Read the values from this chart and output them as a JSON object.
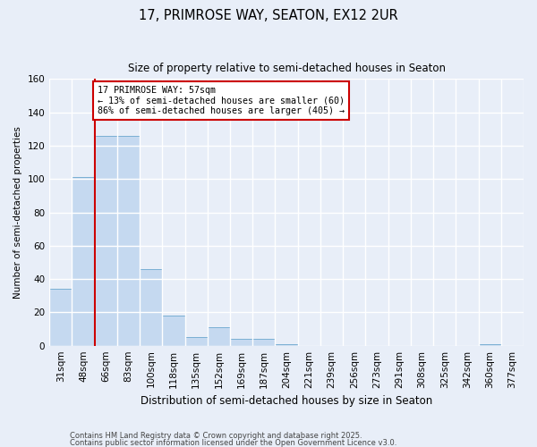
{
  "title1": "17, PRIMROSE WAY, SEATON, EX12 2UR",
  "title2": "Size of property relative to semi-detached houses in Seaton",
  "xlabel": "Distribution of semi-detached houses by size in Seaton",
  "ylabel": "Number of semi-detached properties",
  "categories": [
    "31sqm",
    "48sqm",
    "66sqm",
    "83sqm",
    "100sqm",
    "118sqm",
    "135sqm",
    "152sqm",
    "169sqm",
    "187sqm",
    "204sqm",
    "221sqm",
    "239sqm",
    "256sqm",
    "273sqm",
    "291sqm",
    "308sqm",
    "325sqm",
    "342sqm",
    "360sqm",
    "377sqm"
  ],
  "values": [
    34,
    101,
    126,
    126,
    46,
    18,
    5,
    11,
    4,
    4,
    1,
    0,
    0,
    0,
    0,
    0,
    0,
    0,
    0,
    1,
    0
  ],
  "bar_color": "#c5d9f0",
  "bar_edge_color": "#7aafd4",
  "vline_x_index": 1.5,
  "annotation_text": "17 PRIMROSE WAY: 57sqm\n← 13% of semi-detached houses are smaller (60)\n86% of semi-detached houses are larger (405) →",
  "annotation_box_color": "#ffffff",
  "annotation_box_edge_color": "#cc0000",
  "vline_color": "#cc0000",
  "footer1": "Contains HM Land Registry data © Crown copyright and database right 2025.",
  "footer2": "Contains public sector information licensed under the Open Government Licence v3.0.",
  "ylim": [
    0,
    160
  ],
  "background_color": "#e8eef8",
  "grid_color": "#ffffff"
}
